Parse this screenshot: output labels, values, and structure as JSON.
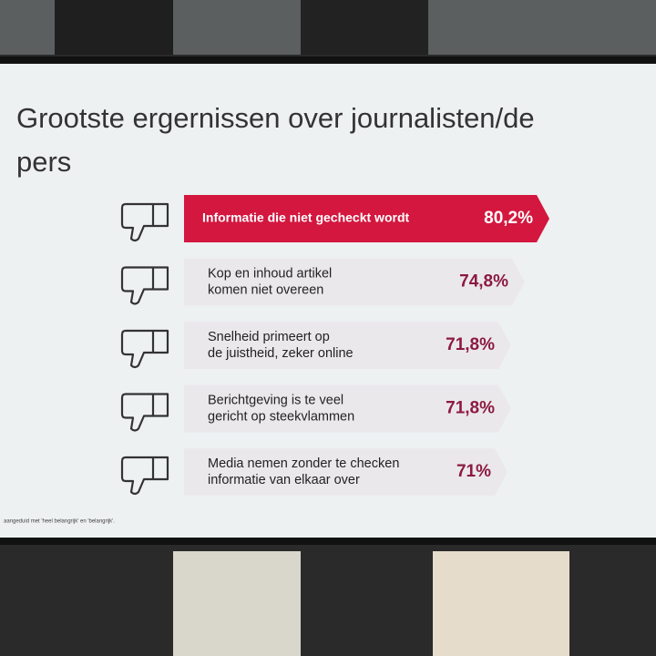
{
  "chart_data": {
    "type": "bar",
    "title": [
      "Grootste ergernissen over journalisten/de",
      "pers"
    ],
    "categories": [
      [
        "Informatie die niet gecheckt wordt"
      ],
      [
        "Kop en inhoud artikel",
        "komen niet overeen"
      ],
      [
        "Snelheid primeert op",
        "de juistheid, zeker online"
      ],
      [
        "Berichtgeving is te veel",
        "gericht op steekvlammen"
      ],
      [
        "Media nemen zonder te checken",
        "informatie van elkaar over"
      ]
    ],
    "values": [
      80.2,
      74.8,
      71.8,
      71.8,
      71
    ],
    "value_labels": [
      "80,2%",
      "74,8%",
      "71,8%",
      "71,8%",
      "71%"
    ],
    "colors": [
      "#d3173f",
      "#ebe8ec",
      "#ebe8ec",
      "#ebe8ec",
      "#ebe8ec"
    ],
    "label_colors": [
      "#ffffff",
      "#8c1a3e",
      "#8c1a3e",
      "#8c1a3e",
      "#8c1a3e"
    ],
    "footnote": "aangeduid met 'heel belangrijk' en 'belangrijk'."
  }
}
